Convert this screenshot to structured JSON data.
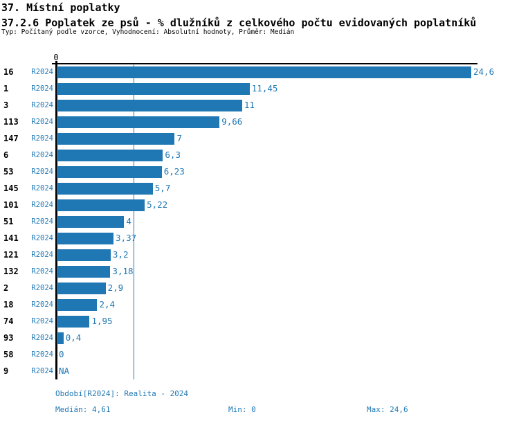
{
  "header": {
    "section_title": "37. Místní poplatky",
    "indicator_title": "37.2.6 Poplatek ze psů - % dlužníků z celkového počtu evidovaných poplatníků",
    "meta": "Typ: Počítaný podle vzorce, Vyhodnocení: Absolutní hodnoty, Průměr: Medián"
  },
  "chart_data": {
    "type": "bar",
    "orientation": "horizontal",
    "title": "37.2.6 Poplatek ze psů - % dlužníků z celkového počtu evidovaných poplatníků",
    "series_label": "R2024",
    "categories": [
      "16",
      "1",
      "3",
      "113",
      "147",
      "6",
      "53",
      "145",
      "101",
      "51",
      "141",
      "121",
      "132",
      "2",
      "18",
      "74",
      "93",
      "58",
      "9"
    ],
    "values": [
      24.6,
      11.45,
      11,
      9.66,
      7,
      6.3,
      6.23,
      5.7,
      5.22,
      4,
      3.37,
      3.2,
      3.18,
      2.9,
      2.4,
      1.95,
      0.4,
      0,
      null
    ],
    "value_labels": [
      "24,6",
      "11,45",
      "11",
      "9,66",
      "7",
      "6,3",
      "6,23",
      "5,7",
      "5,22",
      "4",
      "3,37",
      "3,2",
      "3,18",
      "2,9",
      "2,4",
      "1,95",
      "0,4",
      "0",
      "NA"
    ],
    "xlim": [
      0,
      24.6
    ],
    "x_axis_tick_labels": [
      "0"
    ],
    "median": 4.61,
    "grid": false,
    "legend_position": "none",
    "bar_color": "#1f77b4",
    "axis_color": "#000000",
    "label_color": "#1f77b4"
  },
  "footer": {
    "period": "Období[R2024]: Realita - 2024",
    "median": "Medián: 4,61",
    "min": "Min: 0",
    "max": "Max: 24,6"
  }
}
